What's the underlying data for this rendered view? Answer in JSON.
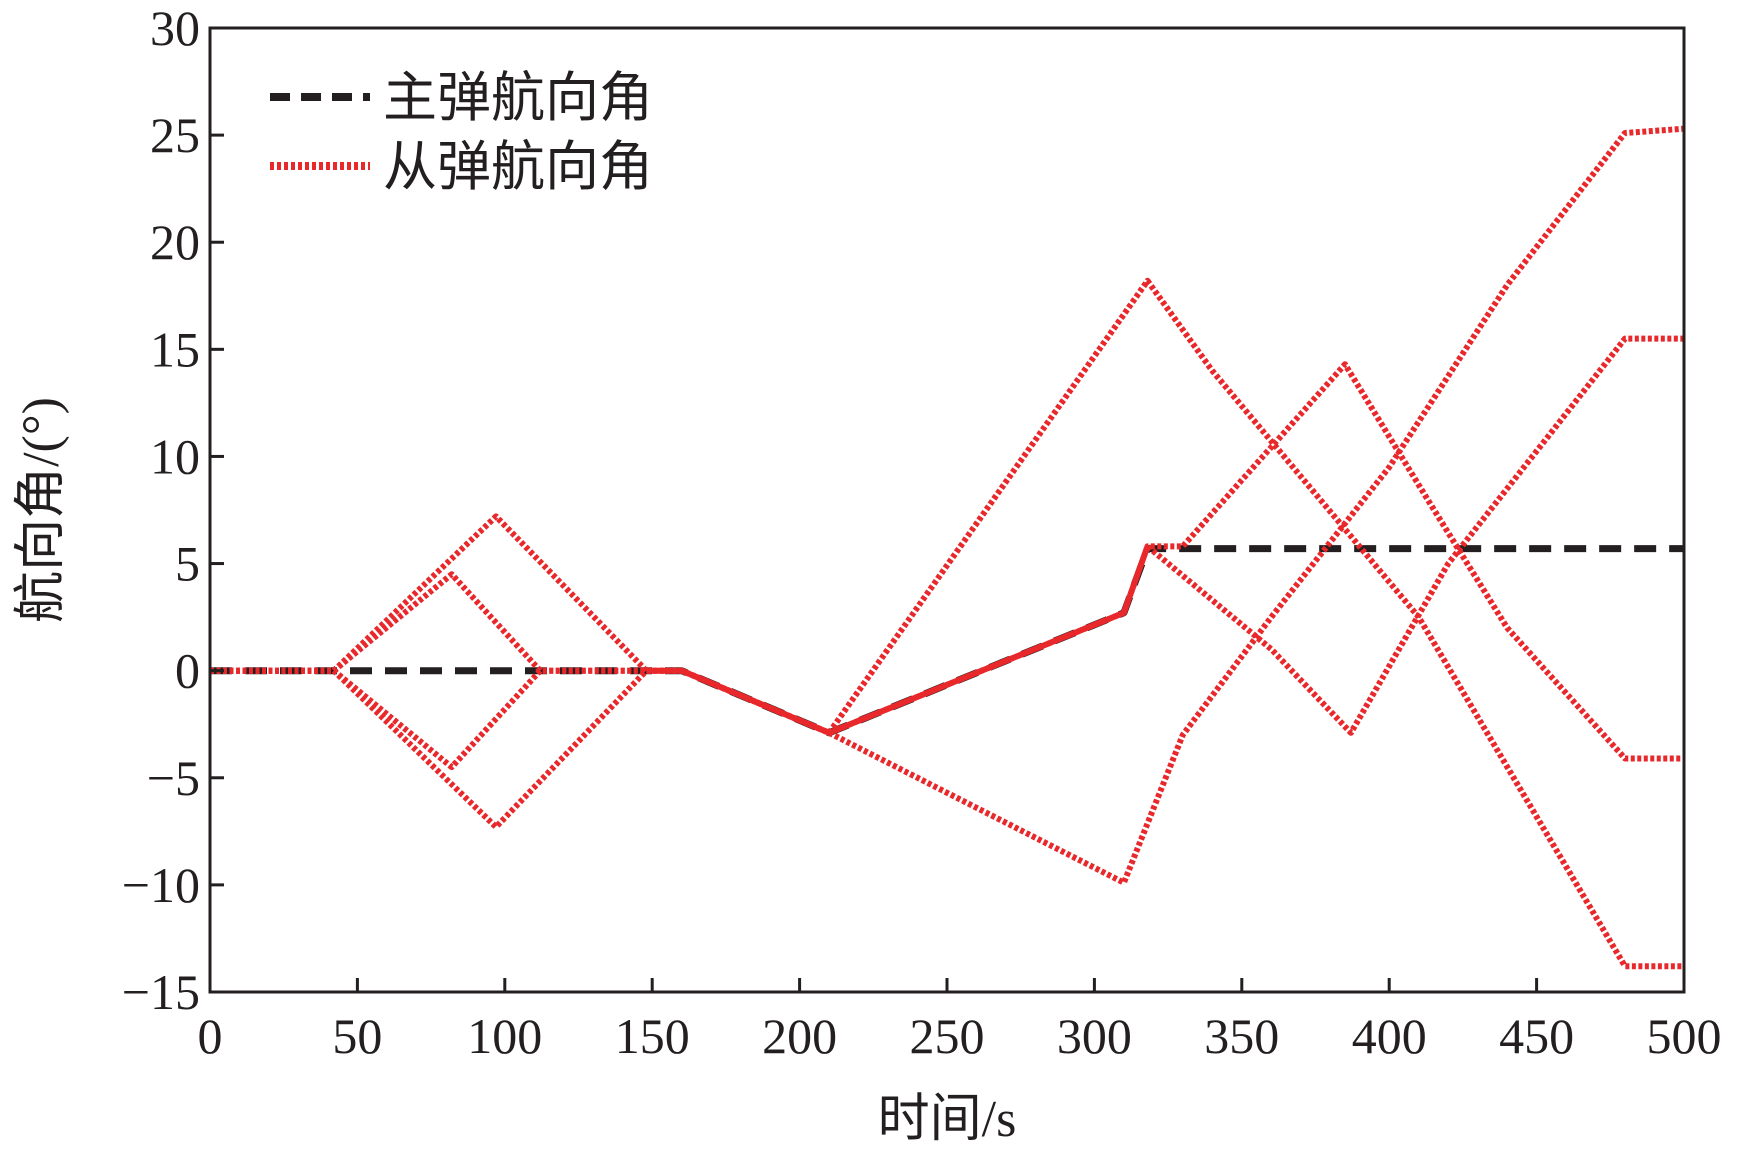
{
  "chart_data": {
    "type": "line",
    "xlabel": "时间/s",
    "ylabel": "航向角/(°)",
    "xlim": [
      0,
      500
    ],
    "ylim": [
      -15,
      30
    ],
    "xticks": [
      0,
      50,
      100,
      150,
      200,
      250,
      300,
      350,
      400,
      450,
      500
    ],
    "yticks": [
      -15,
      -10,
      -5,
      0,
      5,
      10,
      15,
      20,
      25,
      30
    ],
    "ytick_labels": [
      "−15",
      "−10",
      "−5",
      "0",
      "5",
      "10",
      "15",
      "20",
      "25",
      "30"
    ],
    "grid": false,
    "legend": "top-left",
    "series": [
      {
        "name": "主弹航向角",
        "color": "#231f20",
        "style": "dashed",
        "points": [
          [
            0,
            0
          ],
          [
            160,
            0
          ],
          [
            210,
            -2.9
          ],
          [
            310,
            2.7
          ],
          [
            318,
            5.7
          ],
          [
            500,
            5.7
          ]
        ]
      },
      {
        "name": "从弹航向角",
        "color": "#e8282b",
        "style": "dotted",
        "lines": [
          [
            [
              0,
              0
            ],
            [
              42,
              0
            ],
            [
              97,
              7.2
            ],
            [
              148,
              0
            ],
            [
              160,
              0
            ],
            [
              210,
              -2.9
            ],
            [
              310,
              2.7
            ],
            [
              318,
              5.8
            ],
            [
              330,
              5.8
            ],
            [
              385,
              14.3
            ],
            [
              413,
              8.0
            ],
            [
              440,
              2.0
            ],
            [
              480,
              -4.1
            ],
            [
              500,
              -4.1
            ]
          ],
          [
            [
              0,
              0
            ],
            [
              42,
              0
            ],
            [
              97,
              -7.3
            ],
            [
              148,
              0
            ],
            [
              160,
              0
            ],
            [
              210,
              -2.9
            ],
            [
              310,
              2.7
            ],
            [
              318,
              5.8
            ],
            [
              360,
              1.0
            ],
            [
              387,
              -2.9
            ],
            [
              420,
              5.0
            ],
            [
              480,
              15.5
            ],
            [
              500,
              15.5
            ]
          ],
          [
            [
              0,
              0
            ],
            [
              42,
              0
            ],
            [
              82,
              4.5
            ],
            [
              112,
              0
            ],
            [
              160,
              0
            ],
            [
              210,
              -2.9
            ],
            [
              318,
              18.2
            ],
            [
              340,
              14.0
            ],
            [
              410,
              2.5
            ],
            [
              480,
              -13.8
            ],
            [
              500,
              -13.8
            ]
          ],
          [
            [
              0,
              0
            ],
            [
              42,
              0
            ],
            [
              82,
              -4.5
            ],
            [
              112,
              0
            ],
            [
              160,
              0
            ],
            [
              210,
              -2.9
            ],
            [
              310,
              -9.9
            ],
            [
              330,
              -3.0
            ],
            [
              360,
              2.5
            ],
            [
              400,
              9.5
            ],
            [
              440,
              18.0
            ],
            [
              480,
              25.1
            ],
            [
              500,
              25.3
            ]
          ]
        ]
      }
    ]
  }
}
